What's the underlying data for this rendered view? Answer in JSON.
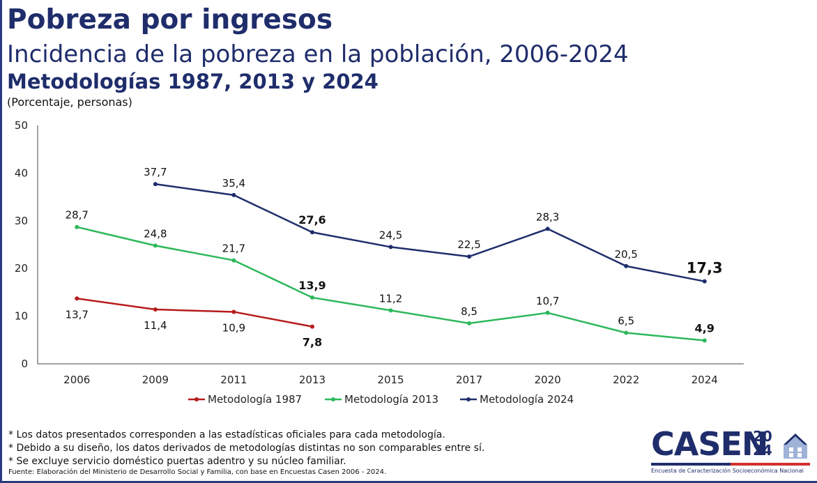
{
  "header": {
    "title": "Pobreza por ingresos",
    "subtitle": "Incidencia de la pobreza en la población, 2006-2024",
    "subtitle2": "Metodologías 1987, 2013 y 2024",
    "unit": "(Porcentaje, personas)"
  },
  "chart_data": {
    "type": "line",
    "title": "Incidencia de la pobreza en la población, 2006-2024",
    "ylabel": "(Porcentaje, personas)",
    "xlabel": "",
    "categories": [
      "2006",
      "2009",
      "2011",
      "2013",
      "2015",
      "2017",
      "2020",
      "2022",
      "2024"
    ],
    "ylim": [
      0,
      50
    ],
    "yticks": [
      0,
      10,
      20,
      30,
      40,
      50
    ],
    "grid": false,
    "legend_position": "bottom",
    "series": [
      {
        "name": "Metodología 1987",
        "color": "#b71c1c",
        "values": [
          13.7,
          11.4,
          10.9,
          7.8,
          null,
          null,
          null,
          null,
          null
        ],
        "labels": [
          "13,7",
          "11,4",
          "10,9",
          "7,8",
          null,
          null,
          null,
          null,
          null
        ],
        "bold": [
          false,
          false,
          false,
          true,
          false,
          false,
          false,
          false,
          false
        ]
      },
      {
        "name": "Metodología 2013",
        "color": "#2db85b",
        "values": [
          28.7,
          24.8,
          21.7,
          13.9,
          11.2,
          8.5,
          10.7,
          6.5,
          4.9
        ],
        "labels": [
          "28,7",
          "24,8",
          "21,7",
          "13,9",
          "11,2",
          "8,5",
          "10,7",
          "6,5",
          "4,9"
        ],
        "bold": [
          false,
          false,
          false,
          true,
          false,
          false,
          false,
          false,
          true
        ]
      },
      {
        "name": "Metodología 2024",
        "color": "#1f2d6b",
        "values": [
          null,
          37.7,
          35.4,
          27.6,
          24.5,
          22.5,
          28.3,
          20.5,
          17.3
        ],
        "labels": [
          null,
          "37,7",
          "35,4",
          "27,6",
          "24,5",
          "22,5",
          "28,3",
          "20,5",
          "17,3"
        ],
        "bold": [
          false,
          false,
          false,
          true,
          false,
          false,
          false,
          false,
          true
        ]
      }
    ]
  },
  "notes": [
    "* Los datos presentados corresponden a las estadísticas oficiales para cada metodología.",
    "* Debido a su diseño, los datos derivados de metodologías distintas no son comparables entre sí.",
    "* Se excluye servicio doméstico puertas adentro y su núcleo familiar."
  ],
  "source": "Fuente: Elaboración del Ministerio de Desarrollo Social y Familia, con base en Encuestas Casen 2006 - 2024.",
  "logo": {
    "word": "CASEN",
    "year_top": "20",
    "year_bottom": "24",
    "caption": "Encuesta de Caracterización Socioeconómica Nacional"
  }
}
